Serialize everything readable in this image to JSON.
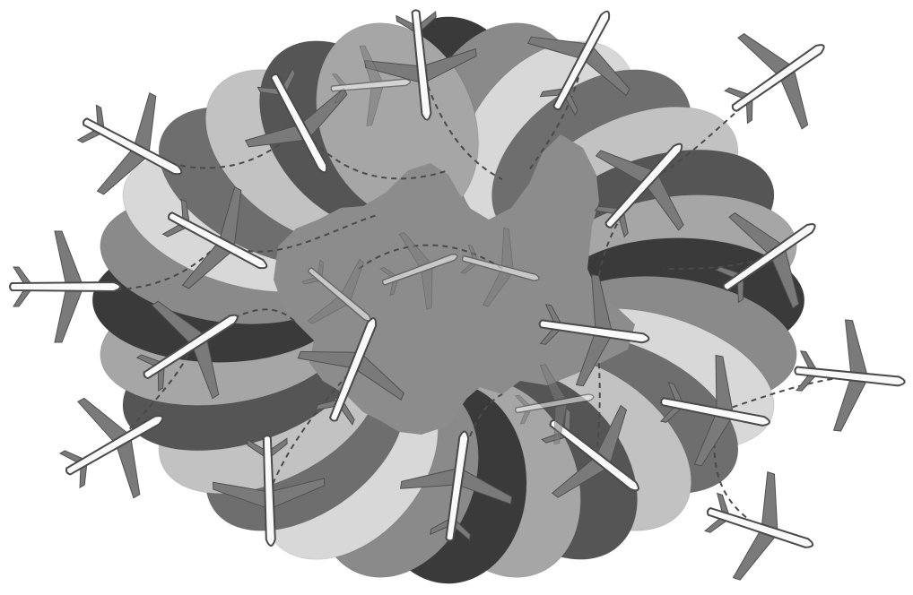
{
  "scene": {
    "subject": "aircraft-coverage-illustration",
    "palette": {
      "background": "#ffffff",
      "region": "#8c8c8c",
      "petal_shades": [
        "#3a3a3a",
        "#555555",
        "#6e6e6e",
        "#8a8a8a",
        "#a6a6a6",
        "#c2c2c2",
        "#d8d8d8"
      ],
      "plane_body": "#fafafa",
      "plane_wing": "#7a7a7a",
      "path": "#4a4a4a"
    },
    "aircraft_count": 24,
    "coverage_petal_count": 28
  }
}
